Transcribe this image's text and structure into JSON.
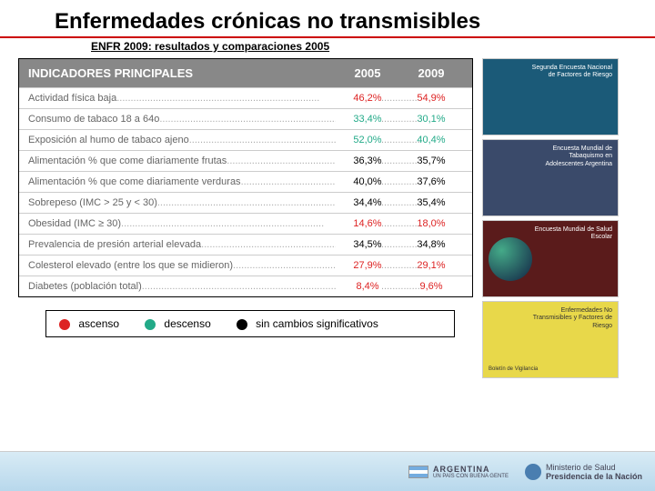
{
  "title": "Enfermedades crónicas no transmisibles",
  "subtitle": "ENFR 2009: resultados y comparaciones 2005",
  "table": {
    "header_label": "INDICADORES PRINCIPALES",
    "header_2005": "2005",
    "header_2009": "2009",
    "rows": [
      {
        "label": "Actividad física baja",
        "v2005": "46,2%",
        "v2009": "54,9%",
        "color": "#d22"
      },
      {
        "label": "Consumo de tabaco 18 a 64o",
        "v2005": "33,4%",
        "v2009": "30,1%",
        "color": "#2a8"
      },
      {
        "label": "Exposición al humo de tabaco ajeno",
        "v2005": "52,0%",
        "v2009": "40,4%",
        "color": "#2a8"
      },
      {
        "label": "Alimentación % que come diariamente frutas",
        "v2005": "36,3%",
        "v2009": "35,7%",
        "color": "#000"
      },
      {
        "label": "Alimentación % que come diariamente verduras",
        "v2005": "40,0%",
        "v2009": "37,6%",
        "color": "#000"
      },
      {
        "label": "Sobrepeso (IMC > 25 y < 30)",
        "v2005": "34,4%",
        "v2009": "35,4%",
        "color": "#000"
      },
      {
        "label": "Obesidad (IMC ≥ 30)",
        "v2005": "14,6%",
        "v2009": "18,0%",
        "color": "#d22"
      },
      {
        "label": "Prevalencia de presión arterial elevada",
        "v2005": "34,5%",
        "v2009": "34,8%",
        "color": "#000"
      },
      {
        "label": "Colesterol elevado (entre los que se midieron)",
        "v2005": "27,9%",
        "v2009": "29,1%",
        "color": "#d22"
      },
      {
        "label": "Diabetes (población total)",
        "v2005": "8,4%",
        "v2009": "9,6%",
        "color": "#d22"
      }
    ]
  },
  "legend": {
    "ascenso": {
      "label": "ascenso",
      "color": "#d22"
    },
    "descenso": {
      "label": "descenso",
      "color": "#2a8"
    },
    "sincambio": {
      "label": "sin cambios significativos",
      "color": "#000"
    }
  },
  "thumbnails": [
    {
      "bg": "#1b5a78",
      "title": "Segunda Encuesta Nacional de Factores de Riesgo",
      "text_color": "#fff"
    },
    {
      "bg": "#3a4a6a",
      "title": "Encuesta Mundial de Tabaquismo en Adolescentes Argentina",
      "text_color": "#fff"
    },
    {
      "bg": "#5a1b1b",
      "title": "Encuesta Mundial de Salud Escolar",
      "text_color": "#fff"
    },
    {
      "bg": "#e8d84a",
      "title": "Enfermedades No Transmisibles y Factores de Riesgo",
      "text_color": "#333"
    }
  ],
  "footer": {
    "argentina": "ARGENTINA",
    "tagline": "UN PAÍS CON BUENA GENTE",
    "ministry": "Ministerio de Salud",
    "presidency": "Presidencia de la Nación"
  }
}
